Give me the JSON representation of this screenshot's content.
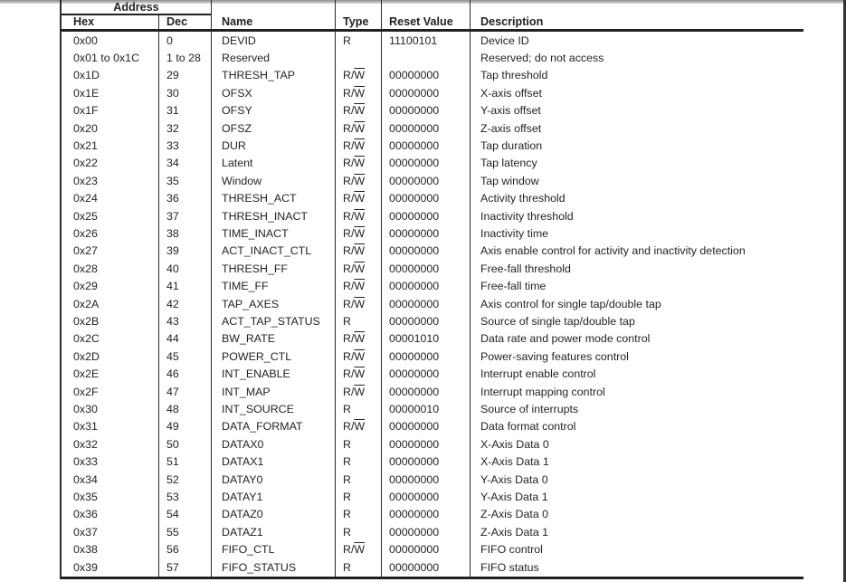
{
  "colors": {
    "text": "#231f20",
    "table_lines": "#2c2c2e",
    "window_top_bar": "#8f8f91",
    "window_right_edge": "#343436"
  },
  "table": {
    "group_header": "Address",
    "columns": [
      "Hex",
      "Dec",
      "Name",
      "Type",
      "Reset Value",
      "Description"
    ],
    "rows": [
      {
        "hex": "0x00",
        "dec": "0",
        "name": "DEVID",
        "type": "R",
        "reset": "11100101",
        "desc": "Device ID"
      },
      {
        "hex": "0x01 to 0x1C",
        "dec": "1 to 28",
        "name": "Reserved",
        "type": "",
        "reset": "",
        "desc": "Reserved; do not access"
      },
      {
        "hex": "0x1D",
        "dec": "29",
        "name": "THRESH_TAP",
        "type": "R/W",
        "reset": "00000000",
        "desc": "Tap threshold"
      },
      {
        "hex": "0x1E",
        "dec": "30",
        "name": "OFSX",
        "type": "R/W",
        "reset": "00000000",
        "desc": "X-axis offset"
      },
      {
        "hex": "0x1F",
        "dec": "31",
        "name": "OFSY",
        "type": "R/W",
        "reset": "00000000",
        "desc": "Y-axis offset"
      },
      {
        "hex": "0x20",
        "dec": "32",
        "name": "OFSZ",
        "type": "R/W",
        "reset": "00000000",
        "desc": "Z-axis offset"
      },
      {
        "hex": "0x21",
        "dec": "33",
        "name": "DUR",
        "type": "R/W",
        "reset": "00000000",
        "desc": "Tap duration"
      },
      {
        "hex": "0x22",
        "dec": "34",
        "name": "Latent",
        "type": "R/W",
        "reset": "00000000",
        "desc": "Tap latency"
      },
      {
        "hex": "0x23",
        "dec": "35",
        "name": "Window",
        "type": "R/W",
        "reset": "00000000",
        "desc": "Tap window"
      },
      {
        "hex": "0x24",
        "dec": "36",
        "name": "THRESH_ACT",
        "type": "R/W",
        "reset": "00000000",
        "desc": "Activity threshold"
      },
      {
        "hex": "0x25",
        "dec": "37",
        "name": "THRESH_INACT",
        "type": "R/W",
        "reset": "00000000",
        "desc": "Inactivity threshold"
      },
      {
        "hex": "0x26",
        "dec": "38",
        "name": "TIME_INACT",
        "type": "R/W",
        "reset": "00000000",
        "desc": "Inactivity time"
      },
      {
        "hex": "0x27",
        "dec": "39",
        "name": "ACT_INACT_CTL",
        "type": "R/W",
        "reset": "00000000",
        "desc": "Axis enable control for activity and inactivity detection"
      },
      {
        "hex": "0x28",
        "dec": "40",
        "name": "THRESH_FF",
        "type": "R/W",
        "reset": "00000000",
        "desc": "Free-fall threshold"
      },
      {
        "hex": "0x29",
        "dec": "41",
        "name": "TIME_FF",
        "type": "R/W",
        "reset": "00000000",
        "desc": "Free-fall time"
      },
      {
        "hex": "0x2A",
        "dec": "42",
        "name": "TAP_AXES",
        "type": "R/W",
        "reset": "00000000",
        "desc": "Axis control for single tap/double tap"
      },
      {
        "hex": "0x2B",
        "dec": "43",
        "name": "ACT_TAP_STATUS",
        "type": "R",
        "reset": "00000000",
        "desc": "Source of single tap/double tap"
      },
      {
        "hex": "0x2C",
        "dec": "44",
        "name": "BW_RATE",
        "type": "R/W",
        "reset": "00001010",
        "desc": "Data rate and power mode control"
      },
      {
        "hex": "0x2D",
        "dec": "45",
        "name": "POWER_CTL",
        "type": "R/W",
        "reset": "00000000",
        "desc": "Power-saving features control"
      },
      {
        "hex": "0x2E",
        "dec": "46",
        "name": "INT_ENABLE",
        "type": "R/W",
        "reset": "00000000",
        "desc": "Interrupt enable control"
      },
      {
        "hex": "0x2F",
        "dec": "47",
        "name": "INT_MAP",
        "type": "R/W",
        "reset": "00000000",
        "desc": "Interrupt mapping control"
      },
      {
        "hex": "0x30",
        "dec": "48",
        "name": "INT_SOURCE",
        "type": "R",
        "reset": "00000010",
        "desc": "Source of interrupts"
      },
      {
        "hex": "0x31",
        "dec": "49",
        "name": "DATA_FORMAT",
        "type": "R/W",
        "reset": "00000000",
        "desc": "Data format control"
      },
      {
        "hex": "0x32",
        "dec": "50",
        "name": "DATAX0",
        "type": "R",
        "reset": "00000000",
        "desc": "X-Axis Data 0"
      },
      {
        "hex": "0x33",
        "dec": "51",
        "name": "DATAX1",
        "type": "R",
        "reset": "00000000",
        "desc": "X-Axis Data 1"
      },
      {
        "hex": "0x34",
        "dec": "52",
        "name": "DATAY0",
        "type": "R",
        "reset": "00000000",
        "desc": "Y-Axis Data 0"
      },
      {
        "hex": "0x35",
        "dec": "53",
        "name": "DATAY1",
        "type": "R",
        "reset": "00000000",
        "desc": "Y-Axis Data 1"
      },
      {
        "hex": "0x36",
        "dec": "54",
        "name": "DATAZ0",
        "type": "R",
        "reset": "00000000",
        "desc": "Z-Axis Data 0"
      },
      {
        "hex": "0x37",
        "dec": "55",
        "name": "DATAZ1",
        "type": "R",
        "reset": "00000000",
        "desc": "Z-Axis Data 1"
      },
      {
        "hex": "0x38",
        "dec": "56",
        "name": "FIFO_CTL",
        "type": "R/W",
        "reset": "00000000",
        "desc": "FIFO control"
      },
      {
        "hex": "0x39",
        "dec": "57",
        "name": "FIFO_STATUS",
        "type": "R",
        "reset": "00000000",
        "desc": "FIFO status"
      }
    ]
  }
}
